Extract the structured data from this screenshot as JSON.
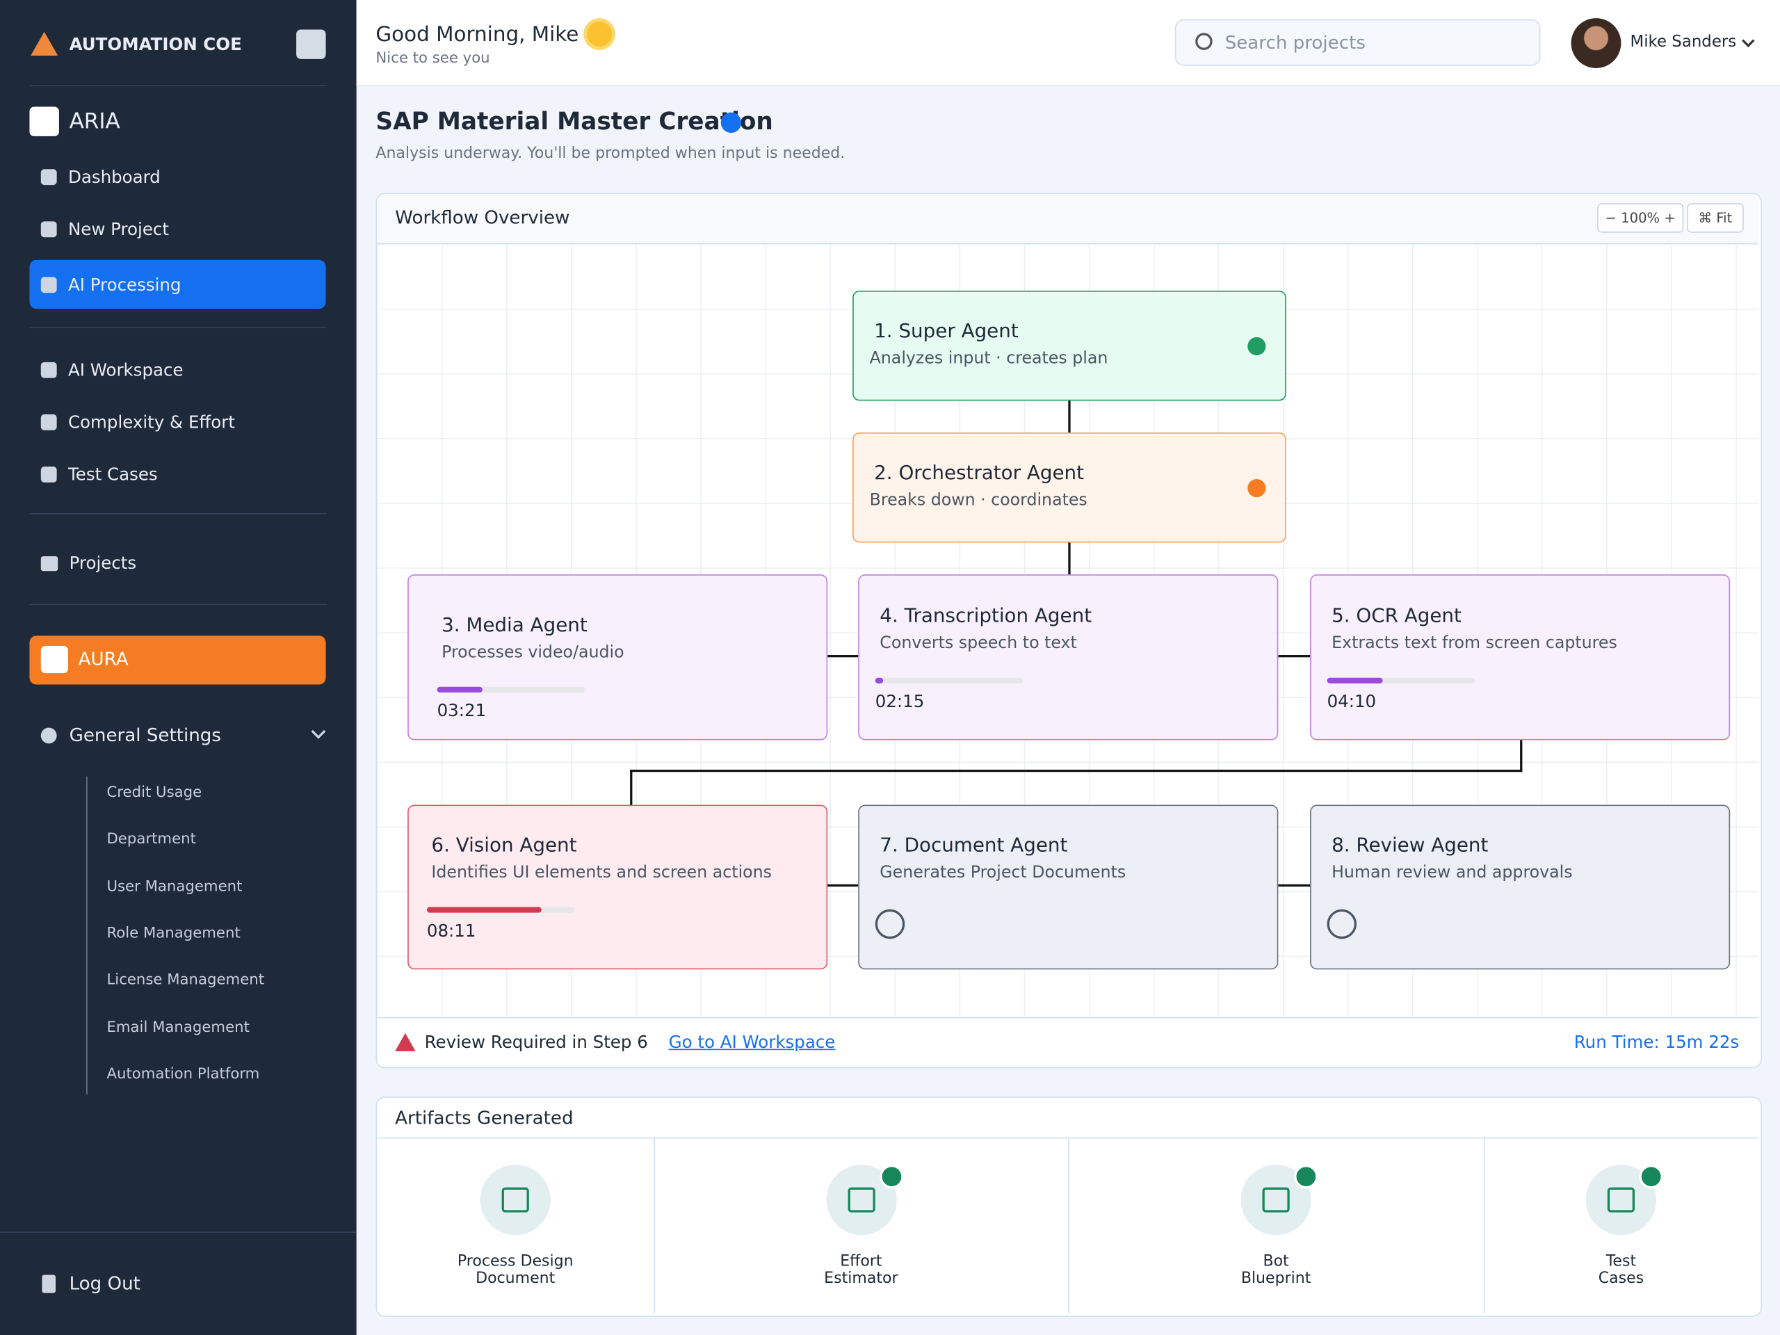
{
  "sidebar": {
    "brand": "AUTOMATION COE",
    "aria": "ARIA",
    "nav": [
      "Dashboard",
      "New Project",
      "AI Processing"
    ],
    "nav2": [
      "AI Workspace",
      "Complexity & Effort",
      "Test Cases"
    ],
    "projects": "Projects",
    "aura": "AURA",
    "settings": "General Settings",
    "settings_items": [
      "Credit Usage",
      "Department",
      "User Management",
      "Role Management",
      "License Management",
      "Email Management",
      "Automation Platform"
    ],
    "logout": "Log Out"
  },
  "header": {
    "greeting": "Good Morning, Mike",
    "subgreeting": "Nice to see you",
    "search": "Search projects",
    "user": "Mike Sanders"
  },
  "page": {
    "title": "SAP Material Master Creation",
    "subtitle": "Analysis underway. You'll be prompted when input is needed."
  },
  "workflow": {
    "title": "Workflow Overview",
    "zoom": "− 100% +",
    "fit": "⌘ Fit",
    "nodes": [
      {
        "title": "1. Super Agent",
        "desc": "Analyzes input · creates plan",
        "color": "#1f9d63",
        "background": "#e6fbf1"
      },
      {
        "title": "2. Orchestrator Agent",
        "desc": "Breaks down · coordinates",
        "color": "#f5a05a",
        "background": "#fff3ea"
      },
      {
        "title": "3. Media Agent",
        "desc": "Processes video/audio",
        "time": "03:21",
        "progress": 31,
        "color": "#c07de8",
        "background": "#f8f0fd"
      },
      {
        "title": "4. Transcription Agent",
        "desc": "Converts speech to text",
        "time": "02:15",
        "progress": 5,
        "color": "#c07de8",
        "background": "#f8f0fd"
      },
      {
        "title": "5. OCR Agent",
        "desc": "Extracts text from screen captures",
        "time": "04:10",
        "progress": 38,
        "color": "#c07de8",
        "background": "#f8f0fd"
      },
      {
        "title": "6. Vision Agent",
        "desc": "Identifies UI elements and screen actions",
        "time": "08:11",
        "progress": 78,
        "color": "#e05a6a",
        "background": "#fdebef"
      },
      {
        "title": "7. Document Agent",
        "desc": "Generates Project Documents",
        "color": "#6b7280",
        "background": "#eceff6"
      },
      {
        "title": "8. Review Agent",
        "desc": "Human review and approvals",
        "color": "#6b7280",
        "background": "#eceff6"
      }
    ],
    "alert": "Review Required in Step 6",
    "link": "Go to AI Workspace",
    "runtime": "Run Time: 15m 22s"
  },
  "artifacts": {
    "title": "Artifacts Generated",
    "items": [
      "Process Design\nDocument",
      "Effort\nEstimator",
      "Bot\nBlueprint",
      "Test\nCases"
    ]
  }
}
